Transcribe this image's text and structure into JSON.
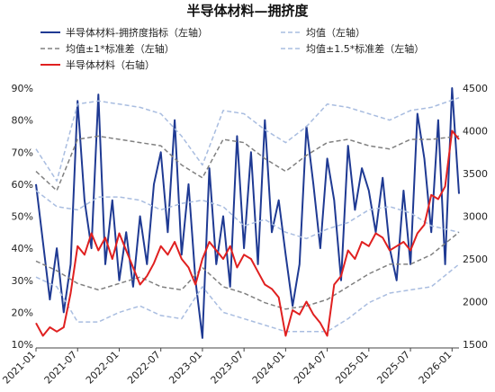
{
  "chart_data": {
    "type": "line",
    "title": "半导体材料—拥挤度",
    "legend": [
      {
        "label": "半导体材料-拥挤度指标（左轴）",
        "color": "#1f3a93",
        "dash": "",
        "width": 2
      },
      {
        "label": "均值（左轴）",
        "color": "#a9bde0",
        "dash": "5,3",
        "width": 1.5
      },
      {
        "label": "均值±1*标准差（左轴）",
        "color": "#808080",
        "dash": "5,3",
        "width": 1.5
      },
      {
        "label": "均值±1.5*标准差（左轴）",
        "color": "#a9bde0",
        "dash": "5,3",
        "width": 1.5
      },
      {
        "label": "半导体材料（右轴）",
        "color": "#e02020",
        "dash": "",
        "width": 2
      }
    ],
    "left_axis": {
      "min": 10,
      "max": 90,
      "ticks": [
        "10%",
        "20%",
        "30%",
        "40%",
        "50%",
        "60%",
        "70%",
        "80%",
        "90%"
      ]
    },
    "right_axis": {
      "min": 1500,
      "max": 4500,
      "ticks": [
        "1500",
        "2000",
        "2500",
        "3000",
        "3500",
        "4000",
        "4500"
      ]
    },
    "x_axis": {
      "start": "2021-01",
      "ticks": [
        "2021-01",
        "2021-07",
        "2022-01",
        "2022-07",
        "2023-01",
        "2023-07",
        "2024-01",
        "2024-07",
        "2025-01",
        "2025-07",
        "2026-01"
      ]
    },
    "series": [
      {
        "name": "半导体材料-拥挤度指标（左轴）",
        "axis": "left",
        "color": "#1f3a93",
        "x": [
          "2021-01",
          "2021-03",
          "2021-04",
          "2021-05",
          "2021-06",
          "2021-07",
          "2021-08",
          "2021-09",
          "2021-10",
          "2021-11",
          "2021-12",
          "2022-01",
          "2022-02",
          "2022-03",
          "2022-04",
          "2022-05",
          "2022-06",
          "2022-07",
          "2022-08",
          "2022-09",
          "2022-10",
          "2022-11",
          "2022-12",
          "2023-01",
          "2023-02",
          "2023-03",
          "2023-04",
          "2023-05",
          "2023-06",
          "2023-07",
          "2023-08",
          "2023-09",
          "2023-10",
          "2023-11",
          "2023-12",
          "2024-01",
          "2024-02",
          "2024-03",
          "2024-04",
          "2024-05",
          "2024-06",
          "2024-07",
          "2024-08",
          "2024-09",
          "2024-10",
          "2024-11",
          "2024-12",
          "2025-01",
          "2025-02",
          "2025-03",
          "2025-04",
          "2025-05",
          "2025-06",
          "2025-07",
          "2025-08",
          "2025-09",
          "2025-10",
          "2025-11",
          "2025-12",
          "2026-01",
          "2026-02"
        ],
        "values": [
          60,
          24,
          40,
          20,
          35,
          86,
          55,
          40,
          88,
          35,
          55,
          30,
          45,
          28,
          50,
          35,
          60,
          70,
          45,
          80,
          38,
          60,
          30,
          12,
          65,
          35,
          50,
          28,
          75,
          40,
          70,
          35,
          80,
          45,
          55,
          38,
          22,
          35,
          78,
          60,
          40,
          68,
          55,
          30,
          72,
          52,
          65,
          58,
          45,
          62,
          40,
          30,
          58,
          35,
          82,
          68,
          45,
          80,
          35,
          90,
          57
        ]
      },
      {
        "name": "均值（左轴）",
        "axis": "left",
        "color": "#a9bde0",
        "x": [
          "2021-01",
          "2021-04",
          "2021-07",
          "2021-10",
          "2022-01",
          "2022-04",
          "2022-07",
          "2022-10",
          "2023-01",
          "2023-04",
          "2023-07",
          "2023-10",
          "2024-01",
          "2024-04",
          "2024-07",
          "2024-10",
          "2025-01",
          "2025-04",
          "2025-07",
          "2025-10",
          "2026-02"
        ],
        "values": [
          58,
          53,
          52,
          56,
          56,
          55,
          52,
          54,
          55,
          53,
          47,
          49,
          45,
          43,
          46,
          48,
          52,
          53,
          51,
          47,
          45
        ]
      },
      {
        "name": "均值+1*标准差（左轴）",
        "axis": "left",
        "color": "#808080",
        "x": [
          "2021-01",
          "2021-04",
          "2021-07",
          "2021-10",
          "2022-01",
          "2022-04",
          "2022-07",
          "2022-10",
          "2023-01",
          "2023-04",
          "2023-07",
          "2023-10",
          "2024-01",
          "2024-04",
          "2024-07",
          "2024-10",
          "2025-01",
          "2025-04",
          "2025-07",
          "2025-10",
          "2026-02"
        ],
        "values": [
          64,
          58,
          74,
          75,
          74,
          73,
          72,
          66,
          62,
          74,
          73,
          68,
          64,
          69,
          73,
          74,
          72,
          71,
          74,
          74,
          75
        ]
      },
      {
        "name": "均值-1*标准差（左轴）",
        "axis": "left",
        "color": "#808080",
        "x": [
          "2021-01",
          "2021-04",
          "2021-07",
          "2021-10",
          "2022-01",
          "2022-04",
          "2022-07",
          "2022-10",
          "2023-01",
          "2023-04",
          "2023-07",
          "2023-10",
          "2024-01",
          "2024-04",
          "2024-07",
          "2024-10",
          "2025-01",
          "2025-04",
          "2025-07",
          "2025-10",
          "2026-02"
        ],
        "values": [
          36,
          33,
          29,
          27,
          29,
          31,
          28,
          27,
          34,
          28,
          26,
          23,
          21,
          22,
          24,
          28,
          32,
          35,
          35,
          38,
          45
        ]
      },
      {
        "name": "均值+1.5*标准差（左轴）",
        "axis": "left",
        "color": "#a9bde0",
        "x": [
          "2021-01",
          "2021-04",
          "2021-07",
          "2021-10",
          "2022-01",
          "2022-04",
          "2022-07",
          "2022-10",
          "2023-01",
          "2023-04",
          "2023-07",
          "2023-10",
          "2024-01",
          "2024-04",
          "2024-07",
          "2024-10",
          "2025-01",
          "2025-04",
          "2025-07",
          "2025-10",
          "2026-02"
        ],
        "values": [
          71,
          61,
          85,
          86,
          85,
          84,
          82,
          75,
          66,
          83,
          82,
          77,
          73,
          78,
          85,
          84,
          82,
          80,
          83,
          84,
          87
        ]
      },
      {
        "name": "均值-1.5*标准差（左轴）",
        "axis": "left",
        "color": "#a9bde0",
        "x": [
          "2021-01",
          "2021-04",
          "2021-07",
          "2021-10",
          "2022-01",
          "2022-04",
          "2022-07",
          "2022-10",
          "2023-01",
          "2023-04",
          "2023-07",
          "2023-10",
          "2024-01",
          "2024-04",
          "2024-07",
          "2024-10",
          "2025-01",
          "2025-04",
          "2025-07",
          "2025-10",
          "2026-02"
        ],
        "values": [
          31,
          28,
          17,
          17,
          20,
          22,
          19,
          18,
          28,
          20,
          18,
          16,
          14,
          14,
          14,
          18,
          23,
          26,
          27,
          28,
          35
        ]
      },
      {
        "name": "半导体材料（右轴）",
        "axis": "right",
        "color": "#e02020",
        "x": [
          "2021-01",
          "2021-02",
          "2021-03",
          "2021-04",
          "2021-05",
          "2021-06",
          "2021-07",
          "2021-08",
          "2021-09",
          "2021-10",
          "2021-11",
          "2021-12",
          "2022-01",
          "2022-02",
          "2022-03",
          "2022-04",
          "2022-05",
          "2022-06",
          "2022-07",
          "2022-08",
          "2022-09",
          "2022-10",
          "2022-11",
          "2022-12",
          "2023-01",
          "2023-02",
          "2023-03",
          "2023-04",
          "2023-05",
          "2023-06",
          "2023-07",
          "2023-08",
          "2023-09",
          "2023-10",
          "2023-11",
          "2023-12",
          "2024-01",
          "2024-02",
          "2024-03",
          "2024-04",
          "2024-05",
          "2024-06",
          "2024-07",
          "2024-08",
          "2024-09",
          "2024-10",
          "2024-11",
          "2024-12",
          "2025-01",
          "2025-02",
          "2025-03",
          "2025-04",
          "2025-05",
          "2025-06",
          "2025-07",
          "2025-08",
          "2025-09",
          "2025-10",
          "2025-11",
          "2025-12",
          "2026-01",
          "2026-02"
        ],
        "values": [
          1750,
          1600,
          1700,
          1650,
          1700,
          2100,
          2650,
          2550,
          2800,
          2600,
          2750,
          2500,
          2800,
          2600,
          2400,
          2200,
          2300,
          2450,
          2650,
          2550,
          2700,
          2500,
          2400,
          2200,
          2500,
          2700,
          2600,
          2500,
          2650,
          2400,
          2550,
          2500,
          2350,
          2200,
          2150,
          2050,
          1600,
          1900,
          1850,
          2000,
          1850,
          1750,
          1600,
          2200,
          2300,
          2600,
          2500,
          2700,
          2650,
          2800,
          2750,
          2600,
          2650,
          2700,
          2600,
          2800,
          2900,
          3250,
          3200,
          3350,
          4000,
          3900
        ]
      }
    ],
    "grid": false
  }
}
